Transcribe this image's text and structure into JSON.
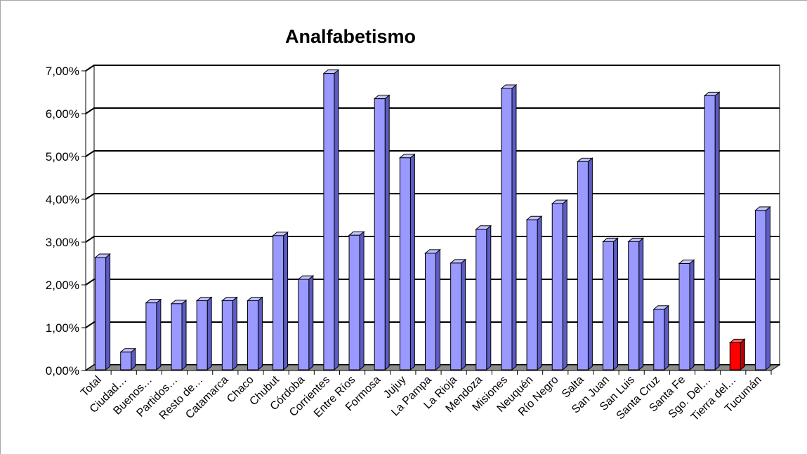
{
  "chart_data": {
    "type": "bar",
    "title": "Analfabetismo",
    "xlabel": "",
    "ylabel": "",
    "ylim": [
      0,
      0.07
    ],
    "yticks": [
      "0,00%",
      "1,00%",
      "2,00%",
      "3,00%",
      "4,00%",
      "5,00%",
      "6,00%",
      "7,00%"
    ],
    "grid": true,
    "legend": "none",
    "categories": [
      "Total",
      "Ciudad…",
      "Buenos…",
      "Partidos…",
      "Resto de…",
      "Catamarca",
      "Chaco",
      "Chubut",
      "Córdoba",
      "Corrientes",
      "Entre Ríos",
      "Formosa",
      "Jujuy",
      "La Pampa",
      "La Rioja",
      "Mendoza",
      "Misiones",
      "Neuquén",
      "Río Negro",
      "Salta",
      "San Juan",
      "San Luis",
      "Santa Cruz",
      "Santa Fe",
      "Sgo. Del…",
      "Tierra del…",
      "Tucumán"
    ],
    "values": [
      0.0264,
      0.0043,
      0.0158,
      0.0156,
      0.0163,
      0.0163,
      0.0163,
      0.0315,
      0.0213,
      0.0694,
      0.0316,
      0.0635,
      0.0497,
      0.0274,
      0.0251,
      0.033,
      0.0659,
      0.0352,
      0.039,
      0.0488,
      0.0301,
      0.0301,
      0.0143,
      0.025,
      0.0642,
      0.0065,
      0.0374
    ],
    "colors": {
      "bar": "#9999ff",
      "bar_side": "#5c5cc4",
      "bar_top": "#c4c4ff",
      "highlight": "#ff0000",
      "highlight_side": "#b80000",
      "highlight_top": "#ff6464",
      "floor": "#8c8c8c",
      "grid": "#000000"
    },
    "highlight_category": "Tierra del…"
  }
}
